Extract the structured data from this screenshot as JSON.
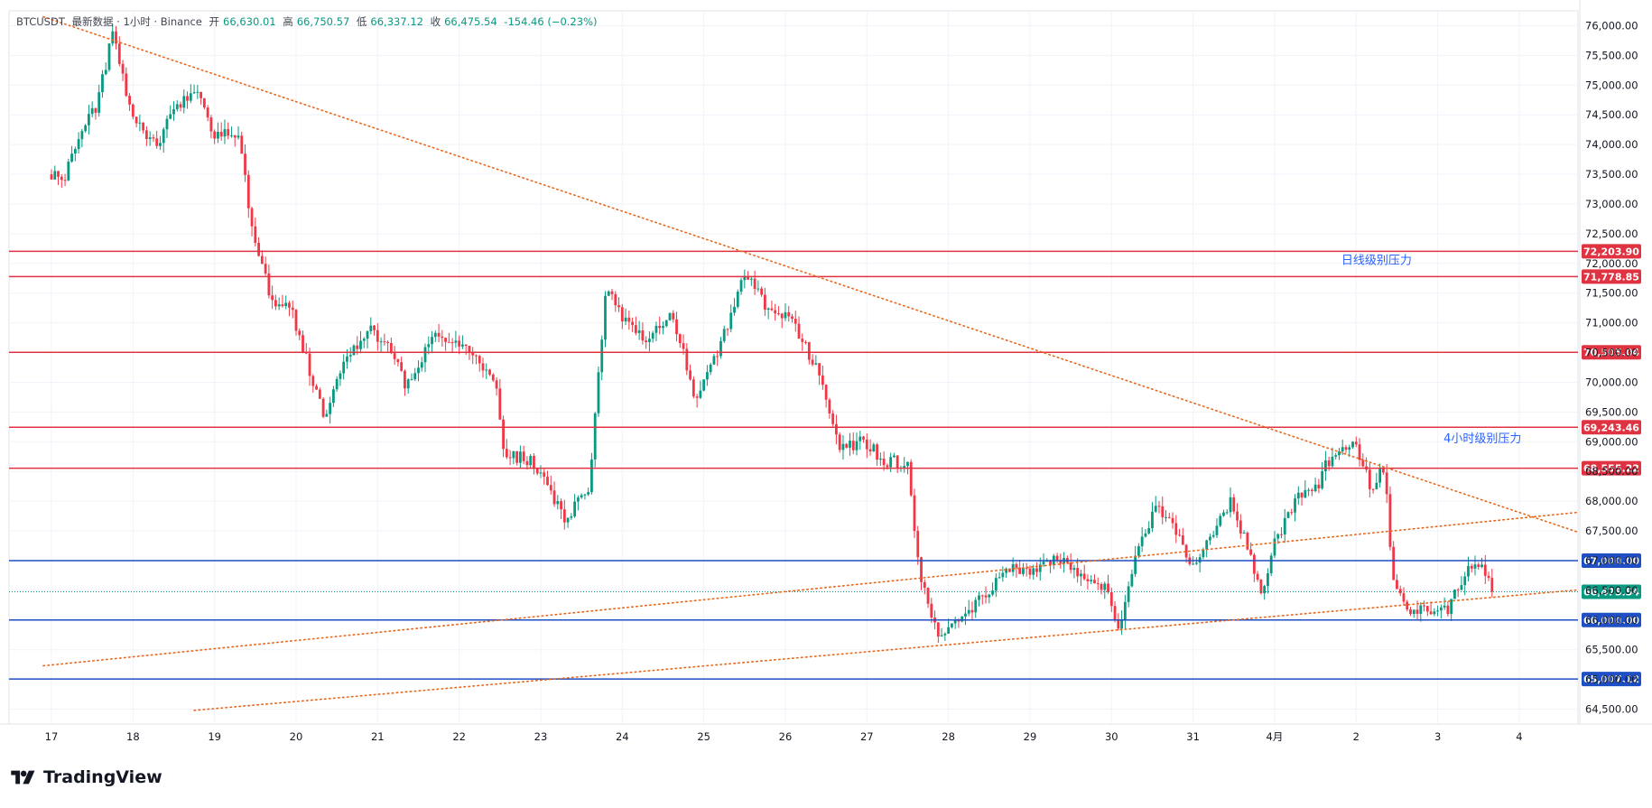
{
  "header": {
    "symbol": "BTCUSDT",
    "source": "最新数据 · 1小时 · Binance",
    "open_label": "开",
    "open": "66,630.01",
    "high_label": "高",
    "high": "66,750.57",
    "low_label": "低",
    "low": "66,337.12",
    "close_label": "收",
    "close": "66,475.54",
    "change": "-154.46 (−0.23%)"
  },
  "brand": {
    "name": "TradingView"
  },
  "colors": {
    "up": "#089981",
    "down": "#f23645",
    "resistance": "#e03342",
    "support": "#1e4fc4",
    "trendline": "#e8671b",
    "last_price": "#089981",
    "annotation": "#2962ff"
  },
  "chart_data": {
    "type": "candlestick",
    "symbol": "BTCUSDT",
    "interval": "1小时",
    "exchange": "Binance",
    "ylim": [
      64250,
      76250
    ],
    "y_ticks": [
      "76,000.00",
      "75,500.00",
      "75,000.00",
      "74,500.00",
      "74,000.00",
      "73,500.00",
      "73,000.00",
      "72,500.00",
      "72,000.00",
      "71,500.00",
      "71,000.00",
      "70,500.00",
      "70,000.00",
      "69,500.00",
      "69,000.00",
      "68,500.00",
      "68,000.00",
      "67,500.00",
      "67,000.00",
      "66,500.00",
      "66,000.00",
      "65,500.00",
      "65,000.00",
      "64,500.00"
    ],
    "x_ticks": [
      "17",
      "18",
      "19",
      "20",
      "21",
      "22",
      "23",
      "24",
      "25",
      "26",
      "27",
      "28",
      "29",
      "30",
      "31",
      "4月",
      "2",
      "3",
      "4"
    ],
    "grid": true,
    "path_points": [
      [
        0,
        73500
      ],
      [
        0.15,
        73400
      ],
      [
        0.35,
        74200
      ],
      [
        0.55,
        74600
      ],
      [
        0.75,
        75900
      ],
      [
        1.0,
        74400
      ],
      [
        1.3,
        74000
      ],
      [
        1.55,
        74700
      ],
      [
        1.8,
        74800
      ],
      [
        2.0,
        74200
      ],
      [
        2.3,
        74100
      ],
      [
        2.45,
        72700
      ],
      [
        2.7,
        71300
      ],
      [
        2.95,
        71200
      ],
      [
        3.1,
        70500
      ],
      [
        3.35,
        69400
      ],
      [
        3.6,
        70400
      ],
      [
        3.9,
        70900
      ],
      [
        4.15,
        70600
      ],
      [
        4.35,
        69900
      ],
      [
        4.7,
        70800
      ],
      [
        5.0,
        70700
      ],
      [
        5.15,
        70600
      ],
      [
        5.45,
        69900
      ],
      [
        5.55,
        68800
      ],
      [
        5.85,
        68700
      ],
      [
        6.1,
        68200
      ],
      [
        6.3,
        67700
      ],
      [
        6.6,
        68300
      ],
      [
        6.8,
        71600
      ],
      [
        7.1,
        70900
      ],
      [
        7.35,
        70700
      ],
      [
        7.6,
        71300
      ],
      [
        7.9,
        69600
      ],
      [
        8.2,
        70600
      ],
      [
        8.5,
        71800
      ],
      [
        8.8,
        71200
      ],
      [
        9.1,
        71000
      ],
      [
        9.4,
        70200
      ],
      [
        9.65,
        68900
      ],
      [
        9.95,
        69000
      ],
      [
        10.2,
        68700
      ],
      [
        10.5,
        68600
      ],
      [
        10.65,
        66700
      ],
      [
        10.9,
        65700
      ],
      [
        11.15,
        66100
      ],
      [
        11.45,
        66400
      ],
      [
        11.7,
        66900
      ],
      [
        12.0,
        66800
      ],
      [
        12.3,
        67000
      ],
      [
        12.65,
        66800
      ],
      [
        12.95,
        66500
      ],
      [
        13.1,
        65800
      ],
      [
        13.3,
        67100
      ],
      [
        13.55,
        67900
      ],
      [
        13.75,
        67600
      ],
      [
        14.0,
        66900
      ],
      [
        14.25,
        67400
      ],
      [
        14.45,
        68000
      ],
      [
        14.65,
        67300
      ],
      [
        14.85,
        66300
      ],
      [
        15.0,
        67300
      ],
      [
        15.25,
        68000
      ],
      [
        15.5,
        68200
      ],
      [
        15.7,
        68800
      ],
      [
        15.95,
        69000
      ],
      [
        16.2,
        68200
      ],
      [
        16.35,
        68600
      ],
      [
        16.45,
        66600
      ],
      [
        16.7,
        66100
      ],
      [
        16.95,
        66200
      ],
      [
        17.15,
        66200
      ],
      [
        17.35,
        66900
      ],
      [
        17.5,
        67000
      ],
      [
        17.6,
        66700
      ],
      [
        17.7,
        66475.54
      ]
    ],
    "horizontal_levels": [
      {
        "value": 72203.9,
        "label": "72,203.90",
        "kind": "resistance"
      },
      {
        "value": 71778.85,
        "label": "71,778.85",
        "kind": "resistance"
      },
      {
        "value": 70505.04,
        "label": "70,505.04",
        "kind": "resistance"
      },
      {
        "value": 69243.46,
        "label": "69,243.46",
        "kind": "resistance"
      },
      {
        "value": 68555.22,
        "label": "68,555.22",
        "kind": "resistance"
      },
      {
        "value": 67000.0,
        "label": "67,000.00",
        "kind": "support"
      },
      {
        "value": 66000.0,
        "label": "66,000.00",
        "kind": "support"
      },
      {
        "value": 65007.12,
        "label": "65,007.12",
        "kind": "support"
      }
    ],
    "last_price": {
      "value": 66475.54,
      "label": "66,475.54"
    },
    "trendlines": [
      {
        "from": [
          -0.1,
          76150
        ],
        "to": [
          19.0,
          67350
        ]
      },
      {
        "from": [
          -0.1,
          65230
        ],
        "to": [
          19.0,
          67850
        ]
      },
      {
        "from": [
          1.75,
          64480
        ],
        "to": [
          19.0,
          66540
        ]
      }
    ],
    "annotations": [
      {
        "text": "日线级别压力",
        "x": 16.25,
        "y": 71990
      },
      {
        "text": "4小时级别压力",
        "x": 17.55,
        "y": 68990
      }
    ]
  }
}
